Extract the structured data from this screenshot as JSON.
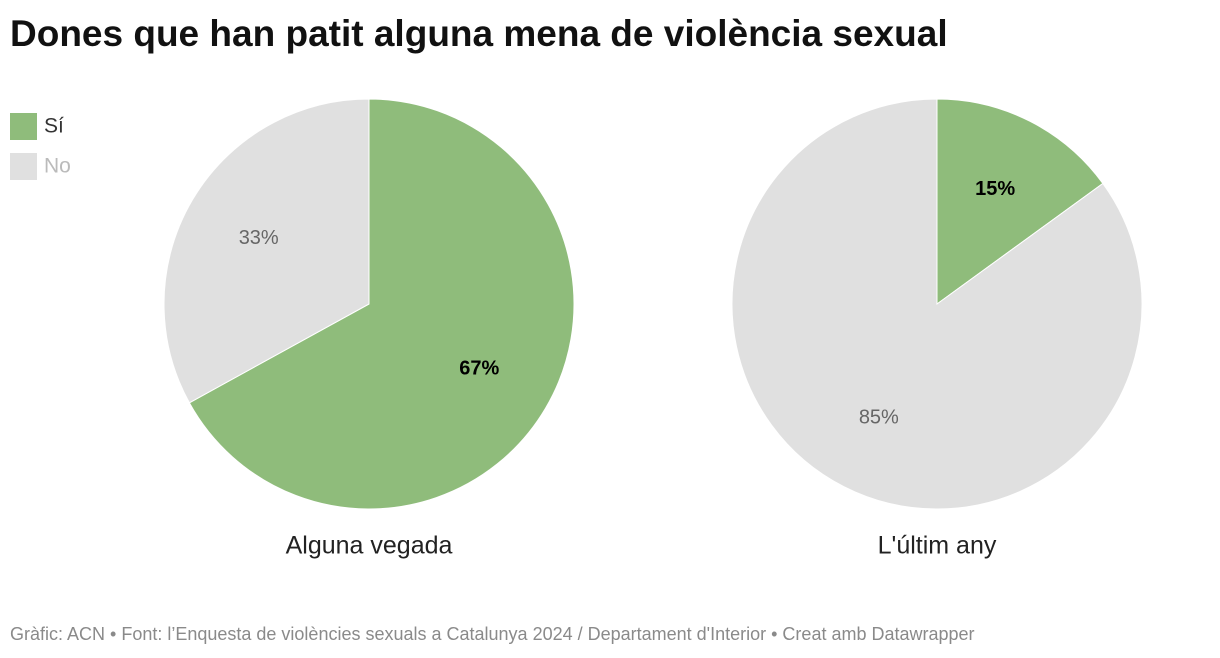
{
  "title": "Dones que han patit alguna mena de violència sexual",
  "chart_data": [
    {
      "type": "pie",
      "title": "Alguna vegada",
      "categories": [
        "Sí",
        "No"
      ],
      "values": [
        67,
        33
      ],
      "value_labels": [
        "67%",
        "33%"
      ],
      "colors": [
        "#8fbc7b",
        "#e0e0e0"
      ]
    },
    {
      "type": "pie",
      "title": "L'últim any",
      "categories": [
        "Sí",
        "No"
      ],
      "values": [
        15,
        85
      ],
      "value_labels": [
        "15%",
        "85%"
      ],
      "colors": [
        "#8fbc7b",
        "#e0e0e0"
      ]
    }
  ],
  "footer": "Gràfic: ACN • Font: l’Enquesta de violències sexuals a Catalunya 2024 / Departament d'Interior • Creat amb Datawrapper"
}
